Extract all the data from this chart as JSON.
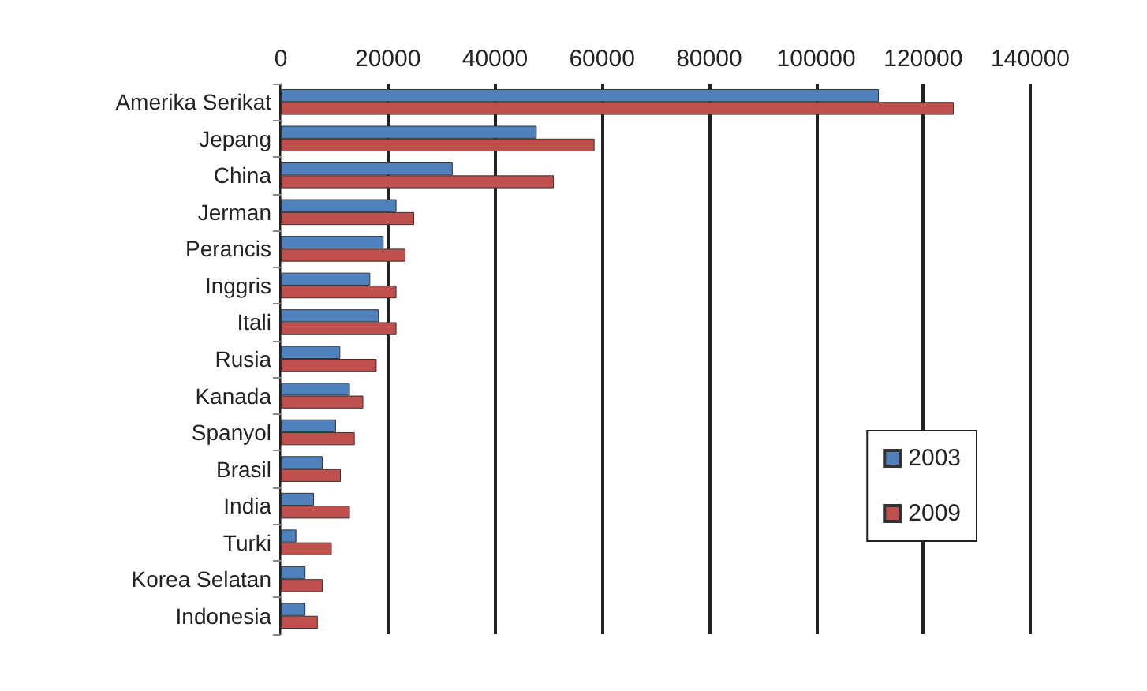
{
  "chart_data": {
    "type": "bar",
    "orientation": "horizontal",
    "categories": [
      "Amerika Serikat",
      "Jepang",
      "China",
      "Jerman",
      "Perancis",
      "Inggris",
      "Itali",
      "Rusia",
      "Kanada",
      "Spanyol",
      "Brasil",
      "India",
      "Turki",
      "Korea Selatan",
      "Indonesia"
    ],
    "series": [
      {
        "name": "2003",
        "color": "#4f81bd",
        "values": [
          111700,
          47800,
          32100,
          21600,
          19200,
          16700,
          18300,
          11100,
          12900,
          10300,
          7800,
          6200,
          2900,
          4600,
          4600
        ]
      },
      {
        "name": "2009",
        "color": "#c0504d",
        "values": [
          125700,
          58600,
          51000,
          24900,
          23300,
          21600,
          21600,
          17900,
          15400,
          13800,
          11200,
          12900,
          9500,
          7800,
          6900
        ]
      }
    ],
    "xlim": [
      0,
      140000
    ],
    "xticks": [
      0,
      20000,
      40000,
      60000,
      80000,
      100000,
      120000,
      140000
    ],
    "grid": "x",
    "legend": "right"
  }
}
